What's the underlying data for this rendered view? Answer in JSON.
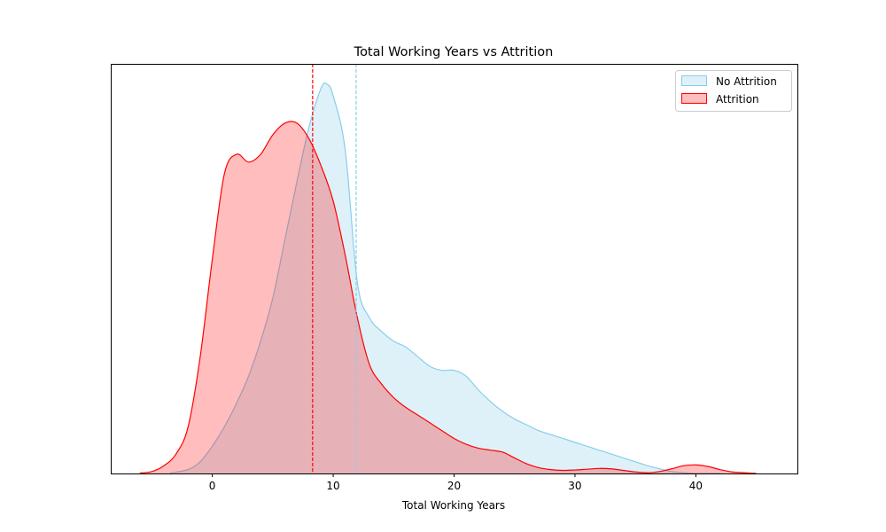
{
  "chart_data": {
    "type": "area",
    "title": "Total Working Years vs Attrition",
    "xlabel": "Total Working Years",
    "ylabel": "",
    "xlim": [
      -8.4,
      48.4
    ],
    "ylim": [
      0,
      1.0
    ],
    "xticks": [
      0,
      10,
      20,
      30,
      40
    ],
    "y_axis_visible": false,
    "grid": false,
    "legend_position": "top-right",
    "series": [
      {
        "name": "No Attrition",
        "line_color": "#87ceeb",
        "fill_color": "#87ceeb",
        "fill_opacity": 0.28,
        "mean_line": 11.9,
        "x": [
          -3.5,
          -2,
          -1,
          0,
          1,
          2,
          3,
          4,
          5,
          6,
          7,
          8,
          9,
          9.5,
          10,
          11,
          12,
          13,
          14,
          15,
          16,
          17,
          18,
          19,
          20,
          21,
          22,
          23,
          24,
          25,
          26,
          27,
          28,
          29,
          30,
          31,
          32,
          33,
          34,
          35,
          36,
          37,
          38,
          39,
          40,
          41,
          42
        ],
        "y": [
          0.001,
          0.01,
          0.03,
          0.07,
          0.12,
          0.18,
          0.25,
          0.34,
          0.45,
          0.6,
          0.75,
          0.89,
          0.99,
          1.0,
          0.97,
          0.83,
          0.49,
          0.4,
          0.365,
          0.34,
          0.325,
          0.3,
          0.275,
          0.265,
          0.265,
          0.25,
          0.215,
          0.185,
          0.16,
          0.14,
          0.125,
          0.11,
          0.1,
          0.09,
          0.08,
          0.07,
          0.06,
          0.05,
          0.04,
          0.03,
          0.02,
          0.012,
          0.005,
          0.002,
          0.0,
          0.0,
          0.0
        ]
      },
      {
        "name": "Attrition",
        "line_color": "#ff0000",
        "fill_color": "#ff0000",
        "fill_opacity": 0.26,
        "mean_line": 8.3,
        "x": [
          -6,
          -5,
          -4,
          -3,
          -2,
          -1,
          0,
          1,
          2,
          3,
          4,
          5,
          6,
          7,
          8,
          9,
          10,
          11,
          12,
          13,
          14,
          15,
          16,
          17,
          18,
          19,
          20,
          21,
          22,
          23,
          24,
          25,
          26,
          27,
          28,
          29,
          30,
          31,
          32,
          33,
          34,
          35,
          36,
          37,
          38,
          39,
          40,
          41,
          42,
          43,
          44,
          45
        ],
        "y": [
          0.001,
          0.005,
          0.02,
          0.05,
          0.12,
          0.3,
          0.55,
          0.77,
          0.82,
          0.8,
          0.82,
          0.87,
          0.9,
          0.9,
          0.86,
          0.79,
          0.7,
          0.56,
          0.4,
          0.28,
          0.23,
          0.195,
          0.17,
          0.15,
          0.13,
          0.11,
          0.09,
          0.075,
          0.065,
          0.06,
          0.055,
          0.04,
          0.025,
          0.015,
          0.01,
          0.008,
          0.009,
          0.011,
          0.013,
          0.012,
          0.008,
          0.004,
          0.002,
          0.005,
          0.012,
          0.02,
          0.022,
          0.018,
          0.01,
          0.004,
          0.002,
          0.0
        ]
      }
    ]
  }
}
